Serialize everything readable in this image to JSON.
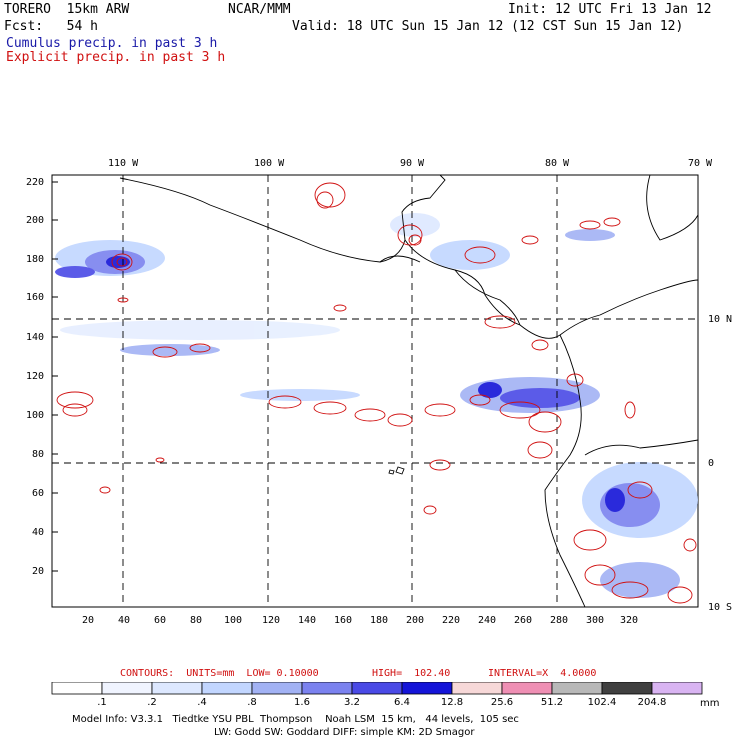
{
  "header": {
    "model": "TORERO  15km ARW",
    "org": "NCAR/MMM",
    "init": "Init: 12 UTC Fri 13 Jan 12",
    "fcst": "Fcst:   54 h",
    "valid": "Valid: 18 UTC Sun 15 Jan 12 (12 CST Sun 15 Jan 12)",
    "cumulus_label": "Cumulus precip. in past 3 h",
    "explicit_label": "Explicit precip. in past 3 h"
  },
  "colors": {
    "cumulus": "#1a1aa8",
    "explicit": "#d01010",
    "contour": "#d01010"
  },
  "map": {
    "lon_labels": [
      "110 W",
      "100 W",
      "90 W",
      "80 W",
      "70 W"
    ],
    "lat_labels": [
      "10 N",
      "0",
      "10 S"
    ],
    "y_ticks": [
      "220",
      "200",
      "180",
      "160",
      "140",
      "120",
      "100",
      "80",
      "60",
      "40",
      "20"
    ],
    "x_ticks": [
      "20",
      "40",
      "60",
      "80",
      "100",
      "120",
      "140",
      "160",
      "180",
      "200",
      "220",
      "240",
      "260",
      "280",
      "300",
      "320"
    ]
  },
  "contour_info": {
    "units_label": "CONTOURS:  UNITS=mm  LOW= 0.10000",
    "high_label": "HIGH=  102.40",
    "interval_label": "INTERVAL=X  4.0000"
  },
  "colorbar": {
    "unit": "mm",
    "ticks": [
      ".1",
      ".2",
      ".4",
      ".8",
      "1.6",
      "3.2",
      "6.4",
      "12.8",
      "25.6",
      "51.2",
      "102.4",
      "204.8"
    ],
    "colors": [
      "#ffffff",
      "#f0f4ff",
      "#dde8ff",
      "#c2d6ff",
      "#a2b2f4",
      "#7b82ef",
      "#4a4ae6",
      "#1414d8",
      "#f7d8d8",
      "#ef8fb4",
      "#b8b8b8",
      "#404040",
      "#d9b4f2"
    ]
  },
  "footer": {
    "line1": "Model Info: V3.3.1   Tiedtke YSU PBL  Thompson    Noah LSM  15 km,   44 levels,  105 sec",
    "line2": "LW: Godd SW: Goddard DIFF: simple KM: 2D Smagor"
  }
}
